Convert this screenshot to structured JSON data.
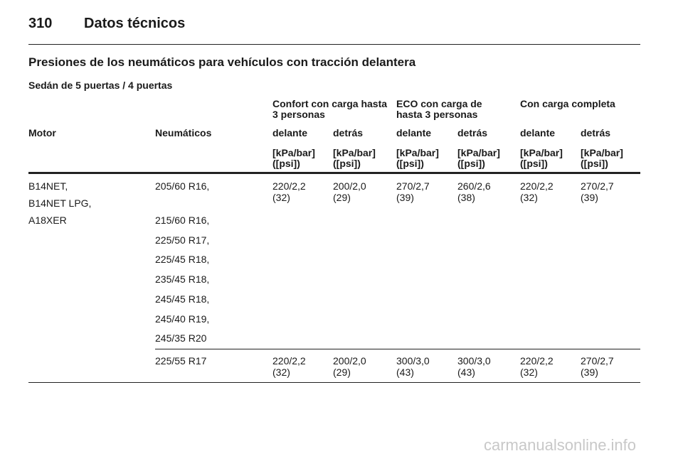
{
  "header": {
    "page_number": "310",
    "title": "Datos técnicos"
  },
  "section_title": "Presiones de los neumáticos para vehículos con tracción delantera",
  "subtitle": "Sedán de 5 puertas / 4 puertas",
  "table": {
    "groups": [
      [
        "Confort con carga hasta",
        "3 personas"
      ],
      [
        "ECO con carga de",
        "hasta 3 personas"
      ],
      [
        "Con carga completa"
      ]
    ],
    "columns": [
      "Motor",
      "Neumáticos",
      "delante",
      "detrás",
      "delante",
      "detrás",
      "delante",
      "detrás"
    ],
    "units": [
      [
        "[kPa/bar]",
        "([psi])"
      ],
      [
        "[kPa/bar]",
        "([psi])"
      ],
      [
        "[kPa/bar]",
        "([psi])"
      ],
      [
        "[kPa/bar]",
        "([psi])"
      ],
      [
        "[kPa/bar]",
        "([psi])"
      ],
      [
        "[kPa/bar]",
        "([psi])"
      ]
    ],
    "rows": [
      {
        "motor": [
          "B14NET,",
          "B14NET LPG,",
          "A18XER"
        ],
        "tires": [
          "205/60 R16,",
          "215/60 R16,",
          "225/50 R17,",
          "225/45 R18,",
          "235/45 R18,",
          "245/45 R18,",
          "245/40 R19,",
          "245/35 R20"
        ],
        "values": [
          [
            "220/2,2",
            "(32)"
          ],
          [
            "200/2,0",
            "(29)"
          ],
          [
            "270/2,7",
            "(39)"
          ],
          [
            "260/2,6",
            "(38)"
          ],
          [
            "220/2,2",
            "(32)"
          ],
          [
            "270/2,7",
            "(39)"
          ]
        ]
      },
      {
        "motor": [],
        "tires": [
          "225/55 R17"
        ],
        "values": [
          [
            "220/2,2",
            "(32)"
          ],
          [
            "200/2,0",
            "(29)"
          ],
          [
            "300/3,0",
            "(43)"
          ],
          [
            "300/3,0",
            "(43)"
          ],
          [
            "220/2,2",
            "(32)"
          ],
          [
            "270/2,7",
            "(39)"
          ]
        ]
      }
    ]
  },
  "watermark": "carmanualsonline.info"
}
